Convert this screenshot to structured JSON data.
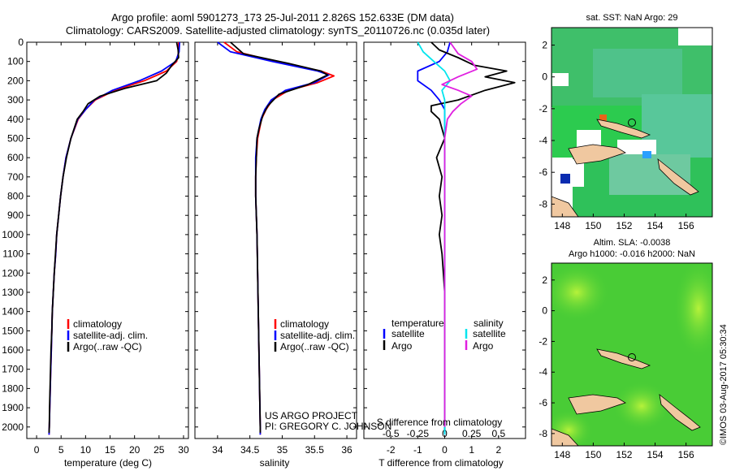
{
  "header": {
    "title_line1": "Argo profile: aoml 5901273_173 25-Jul-2011 2.826S 152.633E (DM data)",
    "title_line2": "Climatology: CARS2009. Satellite-adjusted climatology: synTS_20110726.nc (0.035d later)"
  },
  "colors": {
    "climatology": "#ff0000",
    "satellite": "#0000ff",
    "argo": "#000000",
    "sat_salinity": "#00e5ee",
    "argo_salinity": "#e020e0",
    "land": "#f0c8a0",
    "ocean_green": "#2ecc55"
  },
  "credits": {
    "project": "US ARGO PROJECT",
    "pi": "PI: GREGORY C. JOHNSON",
    "imos_stamp": "©IMOS 03-Aug-2017 05:30:34"
  },
  "legend_temp": {
    "clim": "climatology",
    "sat": "satellite-adj. clim.",
    "argo": "Argo(..raw -QC)"
  },
  "legend_sal": {
    "clim": "climatology",
    "sat": "satellite-adj. clim.",
    "argo": "Argo(..raw -QC)"
  },
  "legend_diff": {
    "temp_head": "temperature",
    "temp_sat": "satellite",
    "temp_argo": "Argo",
    "sal_head": "salinity",
    "sal_sat": "satellite",
    "sal_argo": "Argo"
  },
  "map_sst": {
    "title": "sat. SST: NaN Argo: 29"
  },
  "map_sla": {
    "title1": "Altim. SLA: -0.0038",
    "title2": "Argo h1000: -0.016 h2000: NaN"
  },
  "chart_data": [
    {
      "id": "temperature",
      "type": "line",
      "xlabel": "temperature (deg C)",
      "ylabel": "",
      "xlim": [
        -2,
        31
      ],
      "ylim": [
        2060,
        0
      ],
      "xticks": [
        0,
        5,
        10,
        15,
        20,
        25,
        30
      ],
      "yticks": [
        0,
        100,
        200,
        300,
        400,
        500,
        600,
        700,
        800,
        900,
        1000,
        1100,
        1200,
        1300,
        1400,
        1500,
        1600,
        1700,
        1800,
        1900,
        2000
      ],
      "series": [
        {
          "name": "climatology",
          "color": "#ff0000",
          "points": [
            [
              29,
              0
            ],
            [
              29,
              50
            ],
            [
              28.6,
              100
            ],
            [
              26.5,
              150
            ],
            [
              22,
              200
            ],
            [
              16,
              250
            ],
            [
              12,
              300
            ],
            [
              10,
              350
            ],
            [
              8.5,
              400
            ],
            [
              7,
              500
            ],
            [
              6,
              600
            ],
            [
              5.4,
              700
            ],
            [
              4.9,
              800
            ],
            [
              4.5,
              900
            ],
            [
              4.1,
              1000
            ],
            [
              3.9,
              1100
            ],
            [
              3.6,
              1200
            ],
            [
              3.4,
              1300
            ],
            [
              3.2,
              1400
            ],
            [
              3.1,
              1500
            ],
            [
              3,
              1600
            ],
            [
              2.9,
              1700
            ],
            [
              2.8,
              1800
            ],
            [
              2.7,
              1900
            ],
            [
              2.6,
              2000
            ],
            [
              2.55,
              2040
            ]
          ]
        },
        {
          "name": "satellite-adj. clim.",
          "color": "#0000ff",
          "points": [
            [
              29.2,
              0
            ],
            [
              29.1,
              50
            ],
            [
              28.4,
              100
            ],
            [
              25.5,
              150
            ],
            [
              21,
              200
            ],
            [
              15.5,
              250
            ],
            [
              11.8,
              300
            ],
            [
              10,
              350
            ],
            [
              8.4,
              400
            ],
            [
              7,
              500
            ],
            [
              6,
              600
            ],
            [
              5.4,
              700
            ],
            [
              4.9,
              800
            ],
            [
              4.5,
              900
            ],
            [
              4.1,
              1000
            ],
            [
              3.9,
              1100
            ],
            [
              3.6,
              1200
            ],
            [
              3.4,
              1300
            ],
            [
              3.2,
              1400
            ],
            [
              3.1,
              1500
            ],
            [
              3,
              1600
            ],
            [
              2.9,
              1700
            ],
            [
              2.8,
              1800
            ],
            [
              2.7,
              1900
            ],
            [
              2.6,
              2000
            ],
            [
              2.55,
              2040
            ]
          ]
        },
        {
          "name": "Argo(..raw -QC)",
          "color": "#000000",
          "points": [
            [
              28.6,
              0
            ],
            [
              28.9,
              40
            ],
            [
              29,
              80
            ],
            [
              27.6,
              120
            ],
            [
              26.5,
              160
            ],
            [
              24.5,
              200
            ],
            [
              18,
              240
            ],
            [
              13,
              280
            ],
            [
              10.5,
              320
            ],
            [
              9.5,
              360
            ],
            [
              8.3,
              400
            ],
            [
              7,
              500
            ],
            [
              6.1,
              600
            ],
            [
              5.4,
              700
            ],
            [
              4.9,
              800
            ],
            [
              4.5,
              900
            ],
            [
              4.1,
              1000
            ],
            [
              3.85,
              1100
            ],
            [
              3.6,
              1200
            ],
            [
              3.4,
              1300
            ],
            [
              3.2,
              1400
            ],
            [
              3.1,
              1500
            ],
            [
              2.95,
              1600
            ],
            [
              2.85,
              1700
            ],
            [
              2.75,
              1800
            ],
            [
              2.65,
              1900
            ],
            [
              2.6,
              2000
            ],
            [
              2.55,
              2030
            ]
          ]
        }
      ]
    },
    {
      "id": "salinity",
      "type": "line",
      "xlabel": "salinity",
      "xlim": [
        33.65,
        36.15
      ],
      "ylim": [
        2060,
        0
      ],
      "xticks": [
        34,
        34.5,
        35,
        35.5,
        36
      ],
      "series": [
        {
          "name": "climatology",
          "color": "#ff0000",
          "points": [
            [
              34.1,
              0
            ],
            [
              34.3,
              50
            ],
            [
              34.9,
              100
            ],
            [
              35.6,
              150
            ],
            [
              35.8,
              175
            ],
            [
              35.55,
              210
            ],
            [
              35.1,
              250
            ],
            [
              34.85,
              300
            ],
            [
              34.75,
              350
            ],
            [
              34.68,
              400
            ],
            [
              34.62,
              500
            ],
            [
              34.6,
              600
            ],
            [
              34.59,
              700
            ],
            [
              34.59,
              800
            ],
            [
              34.6,
              900
            ],
            [
              34.61,
              1000
            ],
            [
              34.62,
              1200
            ],
            [
              34.63,
              1400
            ],
            [
              34.64,
              1600
            ],
            [
              34.65,
              1800
            ],
            [
              34.66,
              2000
            ],
            [
              34.66,
              2040
            ]
          ]
        },
        {
          "name": "satellite-adj. clim.",
          "color": "#0000ff",
          "points": [
            [
              34.0,
              0
            ],
            [
              34.2,
              50
            ],
            [
              34.85,
              100
            ],
            [
              35.55,
              150
            ],
            [
              35.72,
              170
            ],
            [
              35.5,
              210
            ],
            [
              35.05,
              250
            ],
            [
              34.83,
              300
            ],
            [
              34.73,
              350
            ],
            [
              34.67,
              400
            ],
            [
              34.61,
              500
            ],
            [
              34.59,
              600
            ],
            [
              34.59,
              700
            ],
            [
              34.59,
              800
            ],
            [
              34.6,
              900
            ],
            [
              34.61,
              1000
            ],
            [
              34.62,
              1200
            ],
            [
              34.63,
              1400
            ],
            [
              34.64,
              1600
            ],
            [
              34.65,
              1800
            ],
            [
              34.66,
              2000
            ],
            [
              34.66,
              2040
            ]
          ]
        },
        {
          "name": "Argo(..raw -QC)",
          "color": "#000000",
          "points": [
            [
              34.2,
              0
            ],
            [
              34.4,
              60
            ],
            [
              35.1,
              110
            ],
            [
              35.6,
              150
            ],
            [
              35.7,
              170
            ],
            [
              35.4,
              220
            ],
            [
              34.95,
              270
            ],
            [
              34.78,
              330
            ],
            [
              34.7,
              380
            ],
            [
              34.64,
              450
            ],
            [
              34.61,
              500
            ],
            [
              34.6,
              600
            ],
            [
              34.59,
              700
            ],
            [
              34.59,
              800
            ],
            [
              34.6,
              900
            ],
            [
              34.61,
              1000
            ],
            [
              34.62,
              1200
            ],
            [
              34.63,
              1400
            ],
            [
              34.64,
              1600
            ],
            [
              34.65,
              1800
            ],
            [
              34.66,
              2000
            ],
            [
              34.66,
              2030
            ]
          ]
        }
      ]
    },
    {
      "id": "difference",
      "type": "line",
      "xlabel": "T difference from climatology",
      "xlabel2": "S difference from climatology",
      "xlim": [
        -3,
        3
      ],
      "ylim": [
        2060,
        0
      ],
      "xticks": [
        -2,
        -1,
        0,
        1,
        2
      ],
      "xticks2": [
        "-0.5",
        "-0.25",
        "0",
        "0.25",
        "0.5"
      ],
      "xticks2_values": [
        -2,
        -1,
        0,
        1,
        2
      ],
      "series": [
        {
          "name": "temperature satellite",
          "color": "#0000ff",
          "points": [
            [
              0.2,
              0
            ],
            [
              0.1,
              50
            ],
            [
              -0.2,
              100
            ],
            [
              -1,
              150
            ],
            [
              -1,
              200
            ],
            [
              -0.5,
              250
            ],
            [
              -0.2,
              300
            ],
            [
              0,
              350
            ],
            [
              0,
              400
            ],
            [
              0,
              500
            ],
            [
              0,
              700
            ],
            [
              0,
              1000
            ],
            [
              0,
              1500
            ],
            [
              0,
              2040
            ]
          ]
        },
        {
          "name": "temperature Argo",
          "color": "#000000",
          "points": [
            [
              -0.5,
              0
            ],
            [
              -0.2,
              40
            ],
            [
              0.5,
              80
            ],
            [
              1.1,
              120
            ],
            [
              2.3,
              150
            ],
            [
              1.5,
              180
            ],
            [
              2.6,
              210
            ],
            [
              1.5,
              250
            ],
            [
              0.5,
              300
            ],
            [
              -0.5,
              330
            ],
            [
              -0.5,
              360
            ],
            [
              -0.2,
              400
            ],
            [
              0,
              500
            ],
            [
              -0.3,
              600
            ],
            [
              -0.1,
              700
            ],
            [
              -0.2,
              800
            ],
            [
              -0.1,
              900
            ],
            [
              -0.2,
              1000
            ],
            [
              -0.1,
              1100
            ],
            [
              0,
              1300
            ],
            [
              0,
              1600
            ],
            [
              0,
              2000
            ],
            [
              0,
              2030
            ]
          ]
        },
        {
          "name": "salinity satellite",
          "color": "#00e5ee",
          "points": [
            [
              -1,
              0
            ],
            [
              -0.8,
              50
            ],
            [
              -0.4,
              100
            ],
            [
              0,
              150
            ],
            [
              0.2,
              200
            ],
            [
              -0.1,
              250
            ],
            [
              0,
              300
            ],
            [
              0,
              400
            ],
            [
              0,
              700
            ],
            [
              0,
              1000
            ],
            [
              0,
              1500
            ],
            [
              0,
              2040
            ]
          ]
        },
        {
          "name": "salinity Argo",
          "color": "#e020e0",
          "points": [
            [
              0.2,
              0
            ],
            [
              0.5,
              60
            ],
            [
              1,
              100
            ],
            [
              1.2,
              140
            ],
            [
              0.5,
              180
            ],
            [
              -0.1,
              220
            ],
            [
              0.5,
              250
            ],
            [
              1,
              280
            ],
            [
              0.6,
              320
            ],
            [
              0.3,
              360
            ],
            [
              0.1,
              400
            ],
            [
              0,
              500
            ],
            [
              0,
              1000
            ],
            [
              0,
              2000
            ]
          ]
        }
      ]
    },
    {
      "id": "sst-map",
      "type": "heatmap",
      "title": "sat. SST: NaN Argo: 29",
      "xlim": [
        147.3,
        157.7
      ],
      "ylim": [
        -8.8,
        3.1
      ],
      "xticks": [
        148,
        150,
        152,
        154,
        156
      ],
      "yticks": [
        2,
        0,
        -2,
        -4,
        -6,
        -8
      ],
      "argo_position": [
        152.633,
        -2.826
      ]
    },
    {
      "id": "sla-map",
      "type": "heatmap",
      "title": "Altim. SLA: -0.0038",
      "subtitle": "Argo h1000: -0.016 h2000: NaN",
      "xlim": [
        147.3,
        157.7
      ],
      "ylim": [
        -8.8,
        3.1
      ],
      "xticks": [
        148,
        150,
        152,
        154,
        156
      ],
      "yticks": [
        2,
        0,
        -2,
        -4,
        -6,
        -8
      ],
      "argo_position": [
        152.633,
        -2.826
      ]
    }
  ]
}
